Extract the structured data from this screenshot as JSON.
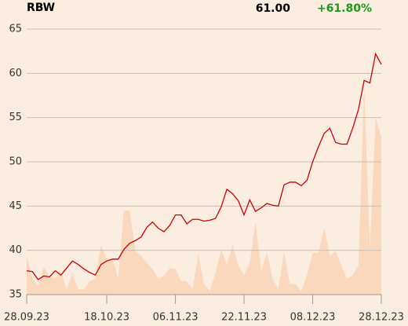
{
  "chart_data": {
    "type": "line",
    "title": "RBW",
    "last_value": "61.00",
    "change": "+61.80%",
    "change_color": "#1a9a1a",
    "categories": [
      "28.09.23",
      null,
      null,
      null,
      null,
      null,
      null,
      null,
      null,
      null,
      null,
      null,
      null,
      null,
      "18.10.23",
      null,
      null,
      null,
      null,
      null,
      null,
      null,
      null,
      null,
      null,
      null,
      "06.11.23",
      null,
      null,
      null,
      null,
      null,
      null,
      null,
      null,
      null,
      null,
      null,
      "22.11.23",
      null,
      null,
      null,
      null,
      null,
      null,
      null,
      null,
      null,
      null,
      null,
      "08.12.23",
      null,
      null,
      null,
      null,
      null,
      null,
      null,
      null,
      null,
      null,
      null,
      "28.12.23"
    ],
    "series": [
      {
        "color": "#cc0000",
        "values": [
          37.7,
          37.6,
          36.7,
          37.1,
          37.0,
          37.7,
          37.2,
          38.0,
          38.8,
          38.4,
          37.9,
          37.5,
          37.2,
          38.4,
          38.8,
          39.0,
          39.0,
          40.1,
          40.8,
          41.1,
          41.5,
          42.6,
          43.2,
          42.5,
          42.1,
          42.8,
          44.0,
          44.0,
          43.0,
          43.5,
          43.5,
          43.3,
          43.4,
          43.6,
          44.9,
          46.9,
          46.4,
          45.6,
          44.0,
          45.7,
          44.4,
          44.8,
          45.3,
          45.1,
          45.0,
          47.4,
          47.7,
          47.7,
          47.3,
          47.9,
          50.0,
          51.7,
          53.2,
          53.8,
          52.2,
          52.0,
          52.0,
          53.8,
          55.9,
          59.2,
          58.9,
          62.2,
          61.0
        ]
      }
    ],
    "area": {
      "color": "#f9d8bd",
      "values": [
        39.4,
        36.8,
        36.0,
        38.1,
        37.0,
        36.8,
        37.6,
        35.6,
        37.4,
        35.6,
        35.6,
        36.5,
        36.8,
        40.6,
        39.0,
        39.0,
        36.8,
        44.5,
        44.5,
        39.9,
        39.4,
        38.6,
        37.9,
        36.8,
        37.1,
        38.0,
        37.9,
        36.5,
        36.5,
        35.6,
        39.6,
        36.2,
        35.4,
        37.4,
        40.1,
        38.4,
        40.6,
        38.3,
        37.2,
        38.6,
        43.2,
        37.7,
        39.7,
        36.8,
        35.6,
        39.9,
        36.2,
        36.2,
        35.4,
        37.2,
        39.7,
        39.7,
        42.5,
        39.4,
        39.9,
        38.3,
        36.8,
        37.2,
        38.3,
        58.7,
        40.1,
        55.0,
        52.8
      ]
    },
    "ylim": [
      35,
      65
    ],
    "yticks": [
      35,
      40,
      45,
      50,
      55,
      60,
      65
    ],
    "grid": true
  }
}
